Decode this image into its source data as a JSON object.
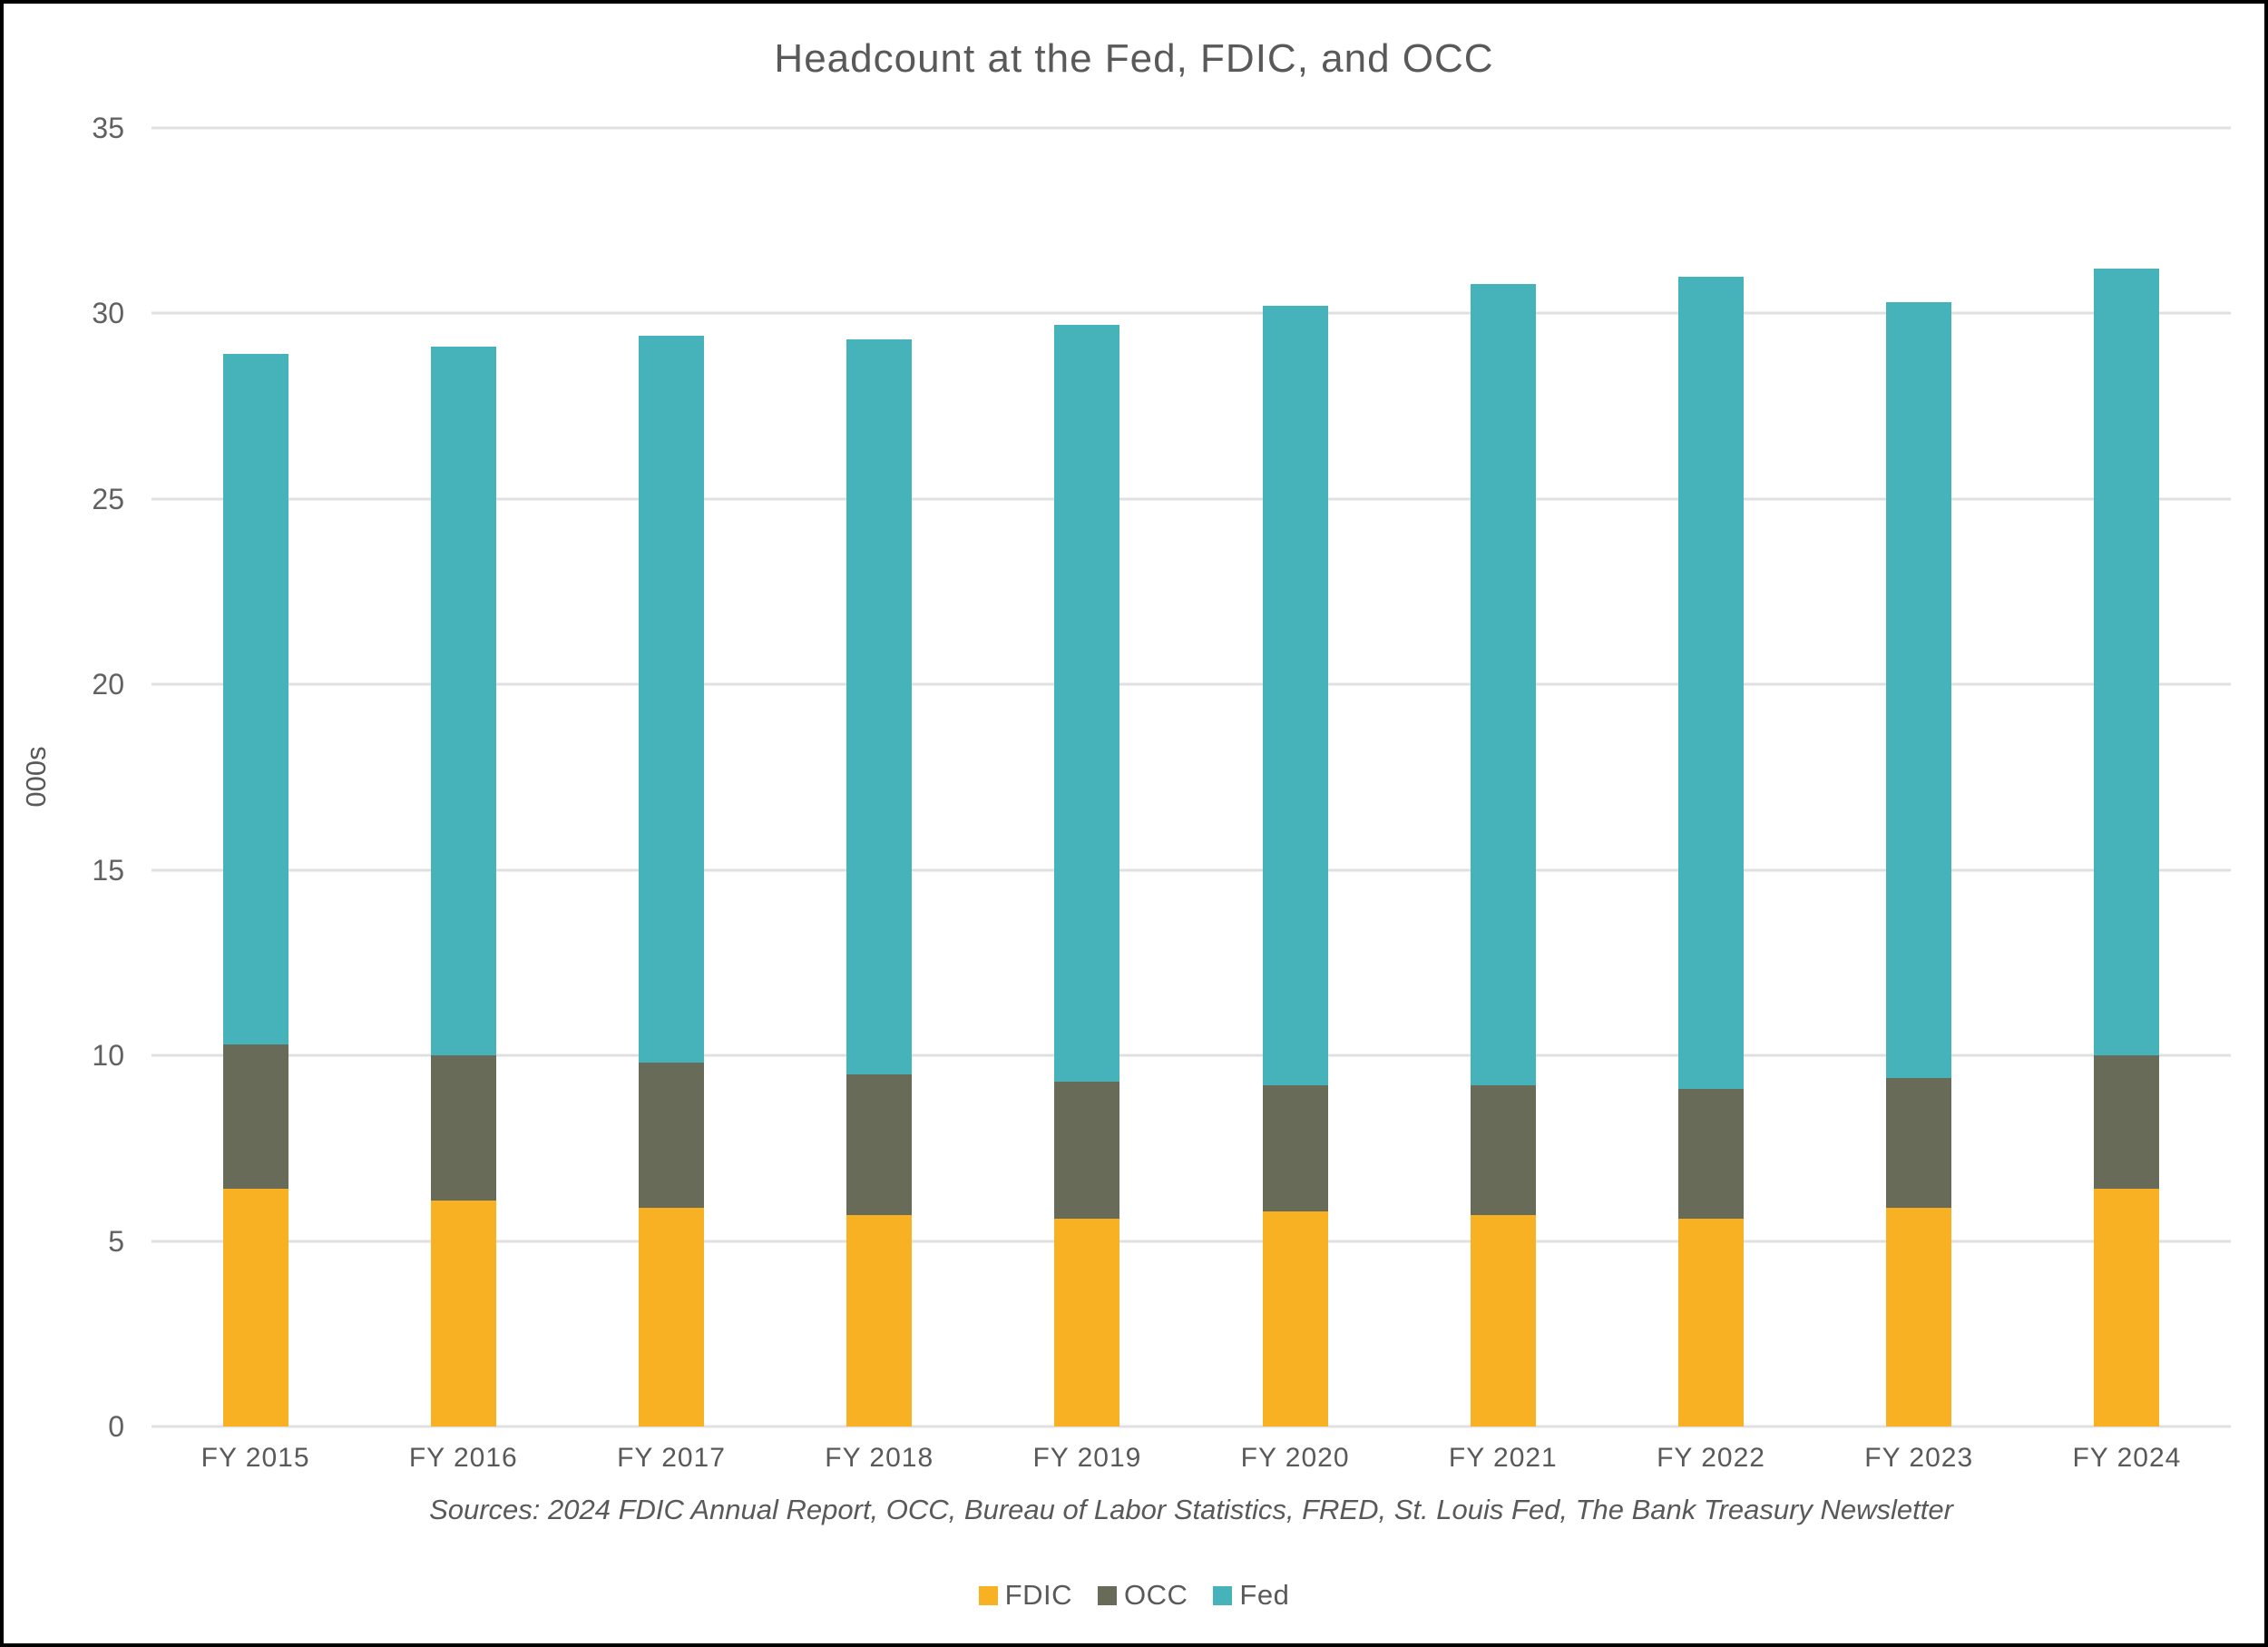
{
  "title": "Headcount at the Fed, FDIC, and OCC",
  "y_axis": {
    "label": "000s",
    "ticks": [
      0,
      5,
      10,
      15,
      20,
      25,
      30,
      35
    ],
    "max": 35
  },
  "x_axis": {
    "labels": [
      "FY 2015",
      "FY 2016",
      "FY 2017",
      "FY 2018",
      "FY 2019",
      "FY 2020",
      "FY 2021",
      "FY 2022",
      "FY 2023",
      "FY 2024"
    ]
  },
  "sources": "Sources: 2024 FDIC Annual Report, OCC, Bureau of Labor Statistics, FRED, St. Louis Fed, The Bank Treasury Newsletter",
  "legend": {
    "items": [
      "FDIC",
      "OCC",
      "Fed"
    ],
    "position": "bottom-center"
  },
  "colors": {
    "fdic": "#F8B122",
    "occ": "#676B58",
    "fed": "#46B3BA",
    "text": "#595959",
    "gridline": "#E0E0E0",
    "frame_border": "#000000"
  },
  "chart_data": {
    "type": "bar",
    "stacked": true,
    "title": "Headcount at the Fed, FDIC, and OCC",
    "xlabel": "",
    "ylabel": "000s",
    "ylim": [
      0,
      35
    ],
    "ytick_step": 5,
    "grid": true,
    "legend_position": "bottom",
    "categories": [
      "FY 2015",
      "FY 2016",
      "FY 2017",
      "FY 2018",
      "FY 2019",
      "FY 2020",
      "FY 2021",
      "FY 2022",
      "FY 2023",
      "FY 2024"
    ],
    "series": [
      {
        "name": "FDIC",
        "color": "#F8B122",
        "values": [
          6.4,
          6.1,
          5.9,
          5.7,
          5.6,
          5.8,
          5.7,
          5.6,
          5.9,
          6.4
        ]
      },
      {
        "name": "OCC",
        "color": "#676B58",
        "values": [
          3.9,
          3.9,
          3.9,
          3.8,
          3.7,
          3.4,
          3.5,
          3.5,
          3.5,
          3.6
        ]
      },
      {
        "name": "Fed",
        "color": "#46B3BA",
        "values": [
          18.6,
          19.1,
          19.6,
          19.8,
          20.4,
          21.0,
          21.6,
          21.9,
          20.9,
          21.2
        ]
      }
    ],
    "stack_totals": [
      28.9,
      29.1,
      29.4,
      29.3,
      29.7,
      30.2,
      30.8,
      31.0,
      30.3,
      31.2
    ]
  }
}
